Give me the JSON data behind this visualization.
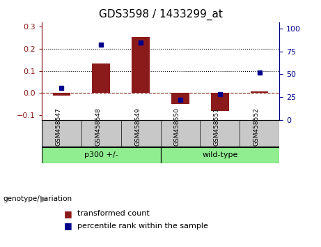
{
  "title": "GDS3598 / 1433299_at",
  "samples": [
    "GSM458547",
    "GSM458548",
    "GSM458549",
    "GSM458550",
    "GSM458551",
    "GSM458552"
  ],
  "transformed_count": [
    -0.01,
    0.133,
    0.252,
    -0.05,
    -0.082,
    0.008
  ],
  "percentile_rank": [
    35,
    82,
    85,
    22,
    28,
    52
  ],
  "bar_color": "#8B1A1A",
  "dot_color": "#00008B",
  "ylim_left": [
    -0.12,
    0.32
  ],
  "ylim_right": [
    0,
    107
  ],
  "yticks_left": [
    -0.1,
    0.0,
    0.1,
    0.2,
    0.3
  ],
  "yticks_right": [
    0,
    25,
    50,
    75,
    100
  ],
  "hline_y": [
    0.0,
    0.1,
    0.2
  ],
  "hline_styles": [
    "--",
    ":",
    ":"
  ],
  "hline_colors": [
    "#8B1A1A",
    "black",
    "black"
  ],
  "legend_items": [
    "transformed count",
    "percentile rank within the sample"
  ],
  "background_color": "#ffffff",
  "tick_area_bg": "#c8c8c8",
  "group_color": "#90EE90",
  "groups": [
    {
      "label": "p300 +/-",
      "start": 0,
      "end": 2
    },
    {
      "label": "wild-type",
      "start": 3,
      "end": 5
    }
  ],
  "genotype_label": "genotype/variation"
}
